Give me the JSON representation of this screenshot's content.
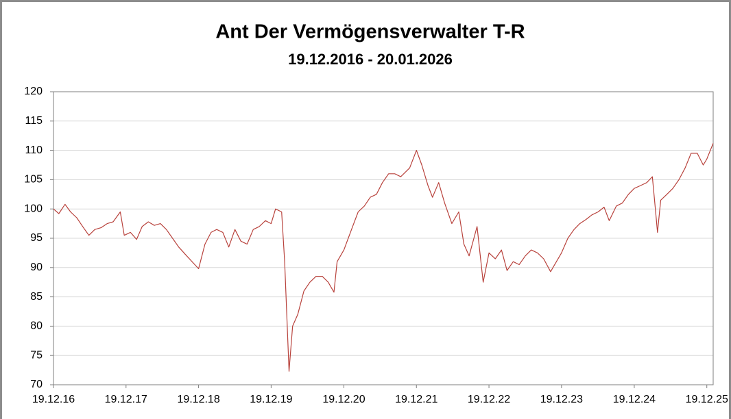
{
  "chart_data": {
    "type": "line",
    "title": "Ant Der Vermögensverwalter T-R",
    "subtitle": "19.12.2016 - 20.01.2026",
    "x": [
      "2016-12-19",
      "2017-01-15",
      "2017-02-15",
      "2017-03-15",
      "2017-04-15",
      "2017-05-15",
      "2017-06-15",
      "2017-07-15",
      "2017-08-15",
      "2017-09-15",
      "2017-10-15",
      "2017-11-20",
      "2017-12-10",
      "2018-01-10",
      "2018-02-10",
      "2018-03-10",
      "2018-04-10",
      "2018-05-10",
      "2018-06-10",
      "2018-07-10",
      "2018-08-10",
      "2018-09-10",
      "2018-10-20",
      "2018-12-19",
      "2019-01-20",
      "2019-02-20",
      "2019-03-20",
      "2019-04-20",
      "2019-05-20",
      "2019-06-20",
      "2019-07-20",
      "2019-08-20",
      "2019-09-20",
      "2019-10-20",
      "2019-11-20",
      "2019-12-19",
      "2020-01-10",
      "2020-02-10",
      "2020-02-25",
      "2020-03-18",
      "2020-04-05",
      "2020-05-01",
      "2020-06-01",
      "2020-07-01",
      "2020-08-01",
      "2020-09-01",
      "2020-10-01",
      "2020-10-30",
      "2020-11-15",
      "2020-12-19",
      "2021-02-01",
      "2021-03-01",
      "2021-04-01",
      "2021-05-01",
      "2021-06-01",
      "2021-07-01",
      "2021-08-01",
      "2021-09-01",
      "2021-10-01",
      "2021-11-15",
      "2021-12-19",
      "2022-01-15",
      "2022-02-15",
      "2022-03-10",
      "2022-04-10",
      "2022-05-10",
      "2022-06-15",
      "2022-07-20",
      "2022-08-15",
      "2022-09-10",
      "2022-10-20",
      "2022-11-20",
      "2022-12-19",
      "2023-01-20",
      "2023-02-20",
      "2023-03-20",
      "2023-04-20",
      "2023-05-20",
      "2023-06-20",
      "2023-07-20",
      "2023-08-20",
      "2023-09-20",
      "2023-10-25",
      "2023-12-19",
      "2024-01-20",
      "2024-02-20",
      "2024-03-20",
      "2024-04-20",
      "2024-05-20",
      "2024-06-20",
      "2024-07-20",
      "2024-08-15",
      "2024-09-20",
      "2024-10-20",
      "2024-11-20",
      "2024-12-19",
      "2025-01-20",
      "2025-02-20",
      "2025-03-20",
      "2025-04-07",
      "2025-04-15",
      "2025-05-01",
      "2025-06-01",
      "2025-07-01",
      "2025-08-01",
      "2025-09-01",
      "2025-10-01",
      "2025-11-01",
      "2025-12-01",
      "2025-12-19",
      "2026-01-20"
    ],
    "values": [
      100,
      99.2,
      100.8,
      99.5,
      98.5,
      97,
      95.5,
      96.5,
      96.8,
      97.5,
      97.8,
      99.5,
      95.5,
      96,
      94.8,
      97,
      97.8,
      97.2,
      97.5,
      96.5,
      95,
      93.5,
      92,
      89.8,
      94,
      96,
      96.5,
      96,
      93.5,
      96.5,
      94.5,
      94,
      96.5,
      97,
      98,
      97.5,
      100,
      99.5,
      91,
      72.3,
      80,
      82,
      86,
      87.5,
      88.5,
      88.5,
      87.5,
      85.8,
      91,
      93,
      97,
      99.5,
      100.5,
      102,
      102.5,
      104.5,
      106,
      106,
      105.5,
      107,
      110,
      107.5,
      104,
      102,
      104.5,
      101,
      97.5,
      99.5,
      94,
      92,
      97,
      87.5,
      92.5,
      91.5,
      93,
      89.5,
      91,
      90.5,
      92,
      93,
      92.5,
      91.5,
      89.3,
      92.5,
      95,
      96.5,
      97.5,
      98.2,
      99,
      99.5,
      100.3,
      98,
      100.5,
      101,
      102.5,
      103.5,
      104,
      104.5,
      105.5,
      99,
      96,
      101.5,
      102.5,
      103.5,
      105,
      107,
      109.5,
      109.5,
      107.5,
      108.5,
      111.2
    ],
    "color": "#b8423c",
    "xlim": [
      "2016-12-19",
      "2026-01-20"
    ],
    "xticks": [
      {
        "value": "2016-12-19",
        "label": "19.12.16"
      },
      {
        "value": "2017-12-19",
        "label": "19.12.17"
      },
      {
        "value": "2018-12-19",
        "label": "19.12.18"
      },
      {
        "value": "2019-12-19",
        "label": "19.12.19"
      },
      {
        "value": "2020-12-19",
        "label": "19.12.20"
      },
      {
        "value": "2021-12-19",
        "label": "19.12.21"
      },
      {
        "value": "2022-12-19",
        "label": "19.12.22"
      },
      {
        "value": "2023-12-19",
        "label": "19.12.23"
      },
      {
        "value": "2024-12-19",
        "label": "19.12.24"
      },
      {
        "value": "2025-12-19",
        "label": "19.12.25"
      }
    ],
    "ylim": [
      70,
      120
    ],
    "yticks": [
      70,
      75,
      80,
      85,
      90,
      95,
      100,
      105,
      110,
      115,
      120
    ],
    "grid": true
  }
}
